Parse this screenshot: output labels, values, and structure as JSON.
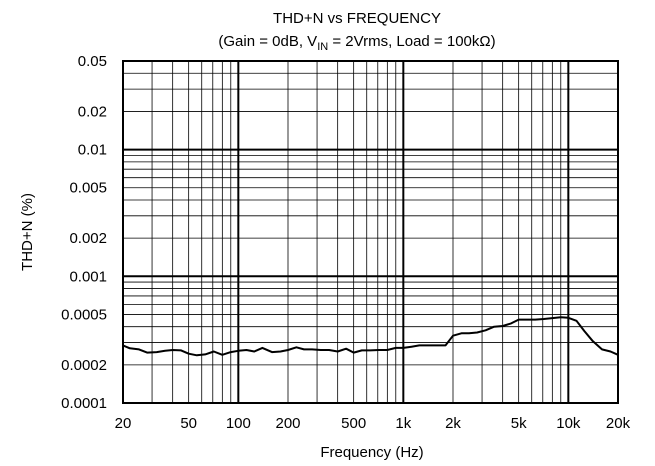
{
  "chart_data": {
    "type": "line",
    "title": "THD+N vs FREQUENCY",
    "subtitle": {
      "prefix": "(Gain = 0dB, V",
      "sub": "IN",
      "suffix": " = 2Vrms, Load = 100kΩ)"
    },
    "xlabel": "Frequency (Hz)",
    "ylabel": "THD+N (%)",
    "x_scale": "log",
    "y_scale": "log",
    "xlim": [
      20,
      20000
    ],
    "ylim": [
      0.0001,
      0.05
    ],
    "grid": true,
    "x_ticks": [
      {
        "value": 20,
        "label": "20"
      },
      {
        "value": 50,
        "label": "50"
      },
      {
        "value": 100,
        "label": "100"
      },
      {
        "value": 200,
        "label": "200"
      },
      {
        "value": 500,
        "label": "500"
      },
      {
        "value": 1000,
        "label": "1k"
      },
      {
        "value": 2000,
        "label": "2k"
      },
      {
        "value": 5000,
        "label": "5k"
      },
      {
        "value": 10000,
        "label": "10k"
      },
      {
        "value": 20000,
        "label": "20k"
      }
    ],
    "y_ticks": [
      {
        "value": 0.05,
        "label": "0.05"
      },
      {
        "value": 0.02,
        "label": "0.02"
      },
      {
        "value": 0.01,
        "label": "0.01"
      },
      {
        "value": 0.005,
        "label": "0.005"
      },
      {
        "value": 0.002,
        "label": "0.002"
      },
      {
        "value": 0.001,
        "label": "0.001"
      },
      {
        "value": 0.0005,
        "label": "0.0005"
      },
      {
        "value": 0.0002,
        "label": "0.0002"
      },
      {
        "value": 0.0001,
        "label": "0.0001"
      }
    ],
    "series": [
      {
        "x": [
          20,
          22,
          25,
          28,
          32,
          36,
          40,
          45,
          50,
          56,
          63,
          71,
          80,
          90,
          100,
          112,
          125,
          140,
          160,
          180,
          200,
          225,
          250,
          280,
          315,
          355,
          400,
          450,
          500,
          560,
          630,
          710,
          800,
          900,
          1000,
          1120,
          1250,
          1400,
          1600,
          1800,
          2000,
          2250,
          2500,
          2800,
          3150,
          3550,
          4000,
          4500,
          5000,
          5600,
          6300,
          7100,
          8000,
          9000,
          10000,
          11200,
          12500,
          14000,
          16000,
          18000,
          20000
        ],
        "y": [
          0.000285,
          0.00027,
          0.000265,
          0.00025,
          0.000252,
          0.000258,
          0.000262,
          0.00026,
          0.000245,
          0.000238,
          0.000242,
          0.000255,
          0.00024,
          0.000252,
          0.000258,
          0.000262,
          0.000255,
          0.000272,
          0.000252,
          0.000255,
          0.000262,
          0.000275,
          0.000265,
          0.000265,
          0.000262,
          0.000262,
          0.000255,
          0.000268,
          0.00025,
          0.00026,
          0.00026,
          0.000262,
          0.000262,
          0.000272,
          0.000272,
          0.000278,
          0.000285,
          0.000285,
          0.000285,
          0.000285,
          0.00034,
          0.000355,
          0.000355,
          0.00036,
          0.000375,
          0.0004,
          0.000405,
          0.000425,
          0.000455,
          0.000455,
          0.000455,
          0.00046,
          0.000468,
          0.000475,
          0.00047,
          0.000445,
          0.00037,
          0.00031,
          0.000265,
          0.000255,
          0.00024
        ],
        "color": "#000000"
      }
    ]
  }
}
